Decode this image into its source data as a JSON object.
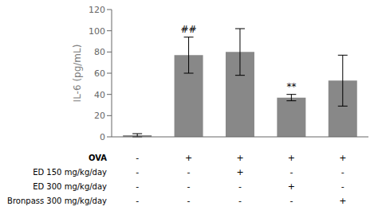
{
  "chart_data": {
    "type": "bar",
    "categories": [
      null,
      null,
      null,
      null,
      null
    ],
    "values": [
      1.5,
      77,
      80,
      37,
      53
    ],
    "errors": [
      1.5,
      17,
      22,
      3,
      24
    ],
    "color": "#888888",
    "ylabel": "IL-6 (pg/mL)",
    "ylim": [
      0,
      120
    ],
    "yticks": [
      0,
      20,
      40,
      60,
      80,
      100,
      120
    ],
    "grid": false,
    "tick_labels": "y",
    "annotations": [
      {
        "index": 1,
        "text": "##"
      },
      {
        "index": 3,
        "text": "**"
      }
    ],
    "table_rows": [
      {
        "label": "OVA",
        "values": [
          "-",
          "+",
          "+",
          "+",
          "+"
        ]
      },
      {
        "label": "ED 150 mg/kg/day",
        "values": [
          "-",
          "-",
          "+",
          "-",
          "-"
        ]
      },
      {
        "label": "ED 300 mg/kg/day",
        "values": [
          "-",
          "-",
          "-",
          "+",
          "-"
        ]
      },
      {
        "label": "Bronpass 300 mg/kg/day",
        "values": [
          "-",
          "-",
          "-",
          "-",
          "+"
        ]
      }
    ]
  }
}
